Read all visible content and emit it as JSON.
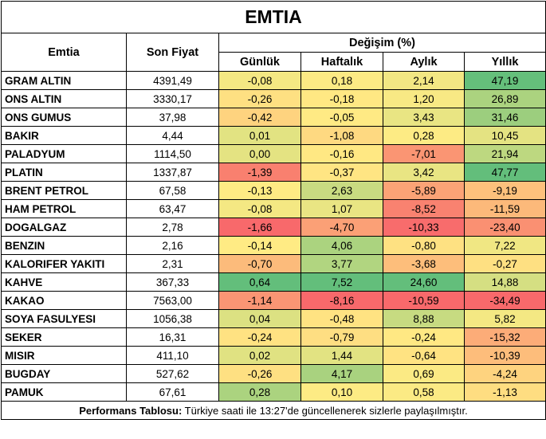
{
  "title": "EMTIA",
  "headers": {
    "commodity": "Emtia",
    "last_price": "Son Fiyat",
    "change_group": "Değişim (%)",
    "daily": "Günlük",
    "weekly": "Haftalık",
    "monthly": "Aylık",
    "yearly": "Yıllık"
  },
  "rows": [
    {
      "name": "GRAM ALTIN",
      "price": "4391,49",
      "daily": "-0,08",
      "weekly": "0,18",
      "monthly": "2,14",
      "yearly": "47,19"
    },
    {
      "name": "ONS ALTIN",
      "price": "3330,17",
      "daily": "-0,26",
      "weekly": "-0,18",
      "monthly": "1,20",
      "yearly": "26,89"
    },
    {
      "name": "ONS GUMUS",
      "price": "37,98",
      "daily": "-0,42",
      "weekly": "-0,05",
      "monthly": "3,43",
      "yearly": "31,46"
    },
    {
      "name": "BAKIR",
      "price": "4,44",
      "daily": "0,01",
      "weekly": "-1,08",
      "monthly": "0,28",
      "yearly": "10,45"
    },
    {
      "name": "PALADYUM",
      "price": "1114,50",
      "daily": "0,00",
      "weekly": "-0,16",
      "monthly": "-7,01",
      "yearly": "21,94"
    },
    {
      "name": "PLATIN",
      "price": "1337,87",
      "daily": "-1,39",
      "weekly": "-0,37",
      "monthly": "3,42",
      "yearly": "47,77"
    },
    {
      "name": "BRENT PETROL",
      "price": "67,58",
      "daily": "-0,13",
      "weekly": "2,63",
      "monthly": "-5,89",
      "yearly": "-9,19"
    },
    {
      "name": "HAM PETROL",
      "price": "63,47",
      "daily": "-0,08",
      "weekly": "1,07",
      "monthly": "-8,52",
      "yearly": "-11,59"
    },
    {
      "name": "DOGALGAZ",
      "price": "2,78",
      "daily": "-1,66",
      "weekly": "-4,70",
      "monthly": "-10,33",
      "yearly": "-23,40"
    },
    {
      "name": "BENZIN",
      "price": "2,16",
      "daily": "-0,14",
      "weekly": "4,06",
      "monthly": "-0,80",
      "yearly": "7,22"
    },
    {
      "name": "KALORIFER YAKITI",
      "price": "2,31",
      "daily": "-0,70",
      "weekly": "3,77",
      "monthly": "-3,68",
      "yearly": "-0,27"
    },
    {
      "name": "KAHVE",
      "price": "367,33",
      "daily": "0,64",
      "weekly": "7,52",
      "monthly": "24,60",
      "yearly": "14,88"
    },
    {
      "name": "KAKAO",
      "price": "7563,00",
      "daily": "-1,14",
      "weekly": "-8,16",
      "monthly": "-10,59",
      "yearly": "-34,49"
    },
    {
      "name": "SOYA FASULYESI",
      "price": "1056,38",
      "daily": "0,04",
      "weekly": "-0,48",
      "monthly": "8,88",
      "yearly": "5,82"
    },
    {
      "name": "SEKER",
      "price": "16,31",
      "daily": "-0,24",
      "weekly": "-0,79",
      "monthly": "-0,24",
      "yearly": "-15,32"
    },
    {
      "name": "MISIR",
      "price": "411,10",
      "daily": "0,02",
      "weekly": "1,44",
      "monthly": "-0,64",
      "yearly": "-10,39"
    },
    {
      "name": "BUGDAY",
      "price": "527,62",
      "daily": "-0,26",
      "weekly": "4,17",
      "monthly": "0,69",
      "yearly": "-4,24"
    },
    {
      "name": "PAMUK",
      "price": "67,61",
      "daily": "0,28",
      "weekly": "0,10",
      "monthly": "0,58",
      "yearly": "-1,13"
    }
  ],
  "footer": {
    "label": "Performans Tablosu:",
    "text": " Türkiye saati ile 13:27'de güncellenerek sizlerle paylaşılmıştır."
  }
}
